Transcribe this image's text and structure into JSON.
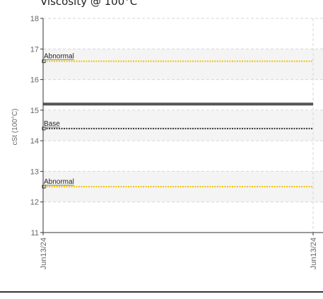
{
  "chart_data": {
    "type": "line",
    "title": "Viscosity @ 100°C",
    "xlabel": "",
    "ylabel": "cSt (100°C)",
    "ylim": [
      11,
      18
    ],
    "yticks": [
      "11",
      "12",
      "13",
      "14",
      "15",
      "16",
      "17",
      "18"
    ],
    "x": [
      "Jun13/24",
      "Jun13/24"
    ],
    "grid": true,
    "bands": [
      [
        12,
        13
      ],
      [
        14,
        15
      ],
      [
        16,
        17
      ]
    ],
    "series": [
      {
        "values": [
          15.2,
          15.2
        ],
        "color": "#555555",
        "style": "solid"
      }
    ],
    "reference_lines": [
      {
        "label": "Abnormal",
        "value": 16.6,
        "color": "#f2c200"
      },
      {
        "label": "Base",
        "value": 14.4,
        "color": "#333333"
      },
      {
        "label": "Abnormal",
        "value": 12.5,
        "color": "#f2c200"
      }
    ]
  }
}
